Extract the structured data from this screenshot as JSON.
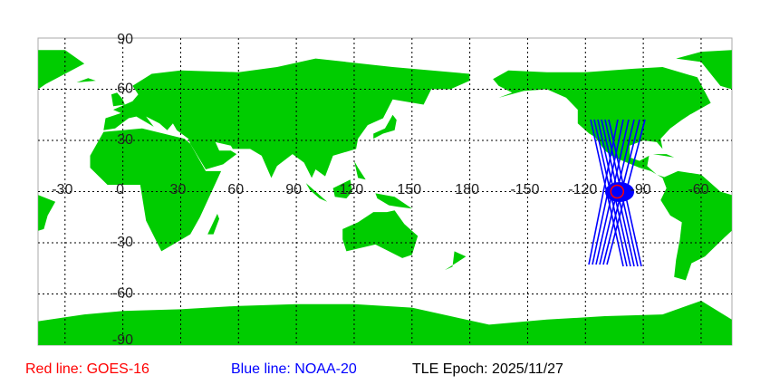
{
  "map": {
    "projection": "equirectangular",
    "center_longitude": 136,
    "land_color": "#00cc00",
    "ocean_color": "#ffffff",
    "grid": true,
    "lon_labels": [
      "-30",
      "0",
      "30",
      "60",
      "90",
      "120",
      "150",
      "180",
      "-150",
      "-120",
      "-90",
      "-60"
    ],
    "lat_labels": [
      "90",
      "60",
      "30",
      "-30",
      "-60",
      "-90"
    ]
  },
  "satellites": {
    "goes": {
      "name": "GOES-16",
      "color": "#ff0000",
      "longitude": -104.5,
      "latitude": 0
    },
    "noaa": {
      "name": "NOAA-20",
      "color": "#0000ff"
    }
  },
  "legend": {
    "red": "Red line: GOES-16",
    "blue": "Blue line: NOAA-20",
    "epoch": "TLE Epoch: 2025/11/27"
  }
}
